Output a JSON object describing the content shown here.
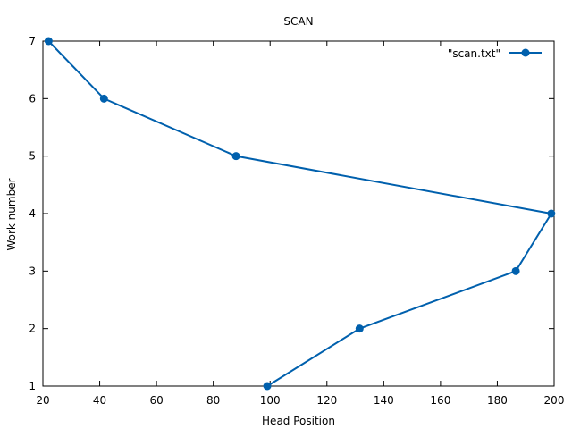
{
  "colors": {
    "series": "#0060ad",
    "axis": "#000000"
  },
  "chart_data": {
    "type": "line",
    "title": "SCAN",
    "xlabel": "Head Position",
    "ylabel": "Work number",
    "xlim": [
      20,
      200
    ],
    "ylim": [
      1,
      7
    ],
    "x_ticks": [
      20,
      40,
      60,
      80,
      100,
      120,
      140,
      160,
      180,
      200
    ],
    "y_ticks": [
      1,
      2,
      3,
      4,
      5,
      6,
      7
    ],
    "grid": false,
    "legend": "top-right",
    "series": [
      {
        "name": "\"scan.txt\"",
        "marker": "circle",
        "x": [
          99,
          131.5,
          186.5,
          199,
          88,
          41.5,
          22
        ],
        "y": [
          1,
          2,
          3,
          4,
          5,
          6,
          7
        ]
      }
    ]
  }
}
